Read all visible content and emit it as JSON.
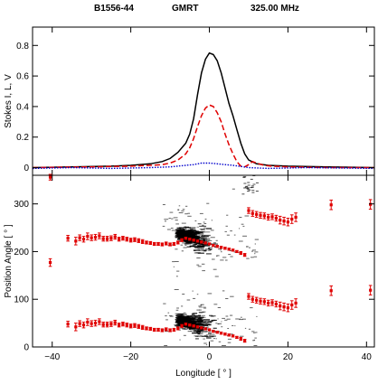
{
  "header": {
    "source": "B1556-44",
    "telescope": "GMRT",
    "frequency": "325.00 MHz"
  },
  "chart_data": [
    {
      "type": "line",
      "panel": "profile",
      "ylabel": "Stokes I, L, V",
      "xlim": [
        -45,
        42
      ],
      "ylim": [
        -0.05,
        0.92
      ],
      "yticks": [
        0,
        0.2,
        0.4,
        0.6,
        0.8
      ],
      "ytick_labels": [
        "0",
        "0.2",
        "0.4",
        "0.6",
        "0.8"
      ],
      "series": [
        {
          "key": "I",
          "color": "#000000",
          "style": "solid",
          "x": [
            -45,
            -35,
            -25,
            -20,
            -15,
            -12,
            -10,
            -8,
            -6,
            -5,
            -4,
            -3,
            -2,
            -1,
            0,
            1,
            2,
            3,
            4,
            5,
            6,
            7,
            8,
            9,
            10,
            12,
            15,
            20,
            30,
            42
          ],
          "y": [
            0.0,
            0.005,
            0.01,
            0.015,
            0.025,
            0.04,
            0.06,
            0.1,
            0.16,
            0.22,
            0.32,
            0.48,
            0.62,
            0.71,
            0.75,
            0.74,
            0.7,
            0.62,
            0.52,
            0.42,
            0.34,
            0.25,
            0.16,
            0.09,
            0.05,
            0.025,
            0.015,
            0.01,
            0.005,
            0.0
          ]
        },
        {
          "key": "L",
          "color": "#e00000",
          "style": "dashed",
          "x": [
            -45,
            -30,
            -20,
            -15,
            -12,
            -10,
            -8,
            -6,
            -5,
            -4,
            -3,
            -2,
            -1,
            0,
            1,
            2,
            3,
            4,
            5,
            6,
            7,
            8,
            9,
            10,
            11,
            12,
            14,
            16,
            20,
            30,
            42
          ],
          "y": [
            0.0,
            0.005,
            0.01,
            0.015,
            0.02,
            0.03,
            0.05,
            0.09,
            0.13,
            0.19,
            0.27,
            0.34,
            0.39,
            0.41,
            0.4,
            0.36,
            0.3,
            0.22,
            0.15,
            0.09,
            0.04,
            0.01,
            0.005,
            0.02,
            0.04,
            0.03,
            0.015,
            0.01,
            0.005,
            0.0,
            0.0
          ]
        },
        {
          "key": "V",
          "color": "#0000cc",
          "style": "dotted",
          "x": [
            -45,
            -35,
            -25,
            -15,
            -10,
            -6,
            -4,
            -2,
            0,
            2,
            4,
            6,
            8,
            10,
            15,
            25,
            42
          ],
          "y": [
            -0.005,
            0.0,
            -0.005,
            0.0,
            0.005,
            0.015,
            0.02,
            0.03,
            0.03,
            0.025,
            0.02,
            0.015,
            0.008,
            0.0,
            -0.005,
            0.0,
            -0.005
          ]
        }
      ]
    },
    {
      "type": "scatter",
      "panel": "position-angle",
      "xlabel": "Longitude [ ° ]",
      "ylabel": "Position Angle [ ° ]",
      "xlim": [
        -45,
        42
      ],
      "ylim": [
        0,
        360
      ],
      "xticks": [
        -40,
        -20,
        0,
        20,
        40
      ],
      "xtick_labels": [
        "−40",
        "−20",
        "0",
        "20",
        "40"
      ],
      "yticks": [
        0,
        100,
        200,
        300
      ],
      "ytick_labels": [
        "0",
        "100",
        "200",
        "300"
      ],
      "pa_points": {
        "color": "#e00000",
        "lon": [
          -40.5,
          -36,
          -34,
          -33,
          -32,
          -31,
          -30,
          -29,
          -28,
          -27,
          -26,
          -25,
          -24,
          -23,
          -22,
          -21,
          -20,
          -19,
          -18,
          -17,
          -16,
          -15,
          -14,
          -13,
          -12,
          -11,
          -10,
          -9,
          -8,
          -7,
          -6,
          -5,
          -4,
          -3,
          -2,
          -1,
          0,
          1,
          2,
          3,
          4,
          5,
          6,
          7,
          8,
          9,
          10,
          11,
          12,
          13,
          14,
          15,
          16,
          17,
          18,
          19,
          20,
          21,
          22,
          31,
          41
        ],
        "pa": [
          177,
          228,
          222,
          229,
          226,
          232,
          229,
          230,
          233,
          227,
          227,
          228,
          231,
          226,
          228,
          226,
          224,
          225,
          223,
          221,
          219,
          218,
          216,
          216,
          215,
          217,
          215,
          216,
          219,
          224,
          228,
          226,
          224,
          222,
          220,
          218,
          216,
          213,
          211,
          209,
          207,
          205,
          203,
          200,
          197,
          193,
          286,
          280,
          278,
          276,
          275,
          272,
          273,
          270,
          266,
          264,
          262,
          268,
          272,
          298,
          299
        ],
        "err": [
          8,
          6,
          8,
          6,
          6,
          7,
          6,
          6,
          6,
          5,
          5,
          5,
          5,
          4,
          4,
          4,
          4,
          4,
          4,
          4,
          3,
          3,
          3,
          3,
          3,
          3,
          3,
          3,
          3,
          3,
          2,
          2,
          2,
          2,
          2,
          2,
          2,
          2,
          2,
          2,
          2,
          2,
          2,
          2,
          3,
          3,
          6,
          6,
          6,
          6,
          6,
          6,
          6,
          6,
          8,
          8,
          8,
          9,
          9,
          10,
          10
        ]
      },
      "pa_offset": 180,
      "upper_isolated": {
        "lon": [
          -40.5
        ],
        "pa": [
          356
        ]
      },
      "density": {
        "color": "#000000",
        "description": "grey-scale histogram of single-pulse PA values, concentrated near longitude 0",
        "bands": [
          {
            "lon_min": -8,
            "lon_max": 9,
            "pa_center": 222,
            "slope": -2.0
          },
          {
            "lon_min": -8,
            "lon_max": 9,
            "pa_center": 42,
            "slope": -2.0
          }
        ]
      }
    }
  ]
}
